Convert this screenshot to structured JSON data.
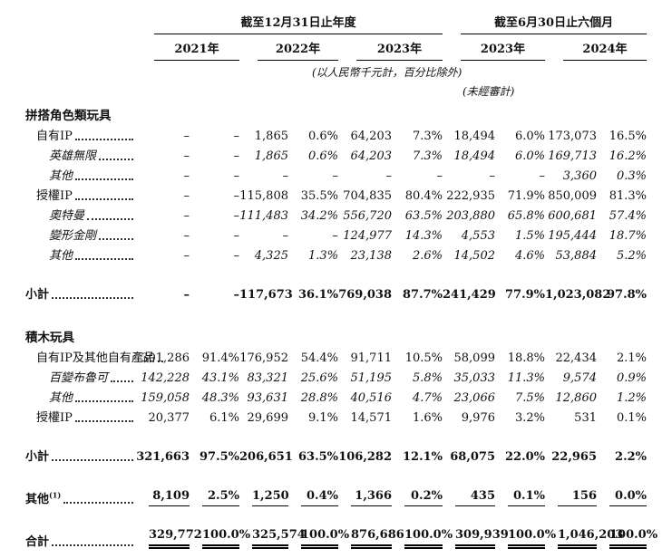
{
  "header": {
    "group1": "截至12月31日止年度",
    "group2": "截至6月30日止六個月",
    "years": [
      "2021年",
      "2022年",
      "2023年",
      "2023年",
      "2024年"
    ],
    "note_units": "(以人民幣千元計，百分比除外)",
    "note_unaudited": "(未經審計)"
  },
  "table": {
    "rows": [
      {
        "kind": "section",
        "label": "拼搭角色類玩具"
      },
      {
        "kind": "data",
        "label": "自有IP",
        "indent": 1,
        "emph": "normal",
        "values": [
          "–",
          "–",
          "1,865",
          "0.6%",
          "64,203",
          "7.3%",
          "18,494",
          "6.0%",
          "173,073",
          "16.5%"
        ]
      },
      {
        "kind": "data",
        "label": "英雄無限",
        "indent": 2,
        "emph": "italic",
        "values": [
          "–",
          "–",
          "1,865",
          "0.6%",
          "64,203",
          "7.3%",
          "18,494",
          "6.0%",
          "169,713",
          "16.2%"
        ]
      },
      {
        "kind": "data",
        "label": "其他",
        "indent": 2,
        "emph": "italic",
        "values": [
          "–",
          "–",
          "–",
          "–",
          "–",
          "–",
          "–",
          "–",
          "3,360",
          "0.3%"
        ]
      },
      {
        "kind": "data",
        "label": "授權IP",
        "indent": 1,
        "emph": "normal",
        "values": [
          "–",
          "–",
          "115,808",
          "35.5%",
          "704,835",
          "80.4%",
          "222,935",
          "71.9%",
          "850,009",
          "81.3%"
        ]
      },
      {
        "kind": "data",
        "label": "奧特曼",
        "indent": 2,
        "emph": "italic",
        "values": [
          "–",
          "–",
          "111,483",
          "34.2%",
          "556,720",
          "63.5%",
          "203,880",
          "65.8%",
          "600,681",
          "57.4%"
        ]
      },
      {
        "kind": "data",
        "label": "變形金剛",
        "indent": 2,
        "emph": "italic",
        "values": [
          "–",
          "–",
          "–",
          "–",
          "124,977",
          "14.3%",
          "4,553",
          "1.5%",
          "195,444",
          "18.7%"
        ]
      },
      {
        "kind": "data",
        "label": "其他",
        "indent": 2,
        "emph": "italic",
        "values": [
          "–",
          "–",
          "4,325",
          "1.3%",
          "23,138",
          "2.6%",
          "14,502",
          "4.6%",
          "53,884",
          "5.2%"
        ]
      },
      {
        "kind": "spacer"
      },
      {
        "kind": "data",
        "label": "小計",
        "indent": 0,
        "emph": "bold",
        "values": [
          "–",
          "–",
          "117,673",
          "36.1%",
          "769,038",
          "87.7%",
          "241,429",
          "77.9%",
          "1,023,082",
          "97.8%"
        ]
      },
      {
        "kind": "spacer"
      },
      {
        "kind": "section",
        "label": "積木玩具"
      },
      {
        "kind": "data",
        "label": "自有IP及其他自有產品",
        "indent": 1,
        "emph": "normal",
        "values": [
          "301,286",
          "91.4%",
          "176,952",
          "54.4%",
          "91,711",
          "10.5%",
          "58,099",
          "18.8%",
          "22,434",
          "2.1%"
        ]
      },
      {
        "kind": "data",
        "label": "百變布魯可",
        "indent": 2,
        "emph": "italic",
        "values": [
          "142,228",
          "43.1%",
          "83,321",
          "25.6%",
          "51,195",
          "5.8%",
          "35,033",
          "11.3%",
          "9,574",
          "0.9%"
        ]
      },
      {
        "kind": "data",
        "label": "其他",
        "indent": 2,
        "emph": "italic",
        "values": [
          "159,058",
          "48.3%",
          "93,631",
          "28.8%",
          "40,516",
          "4.7%",
          "23,066",
          "7.5%",
          "12,860",
          "1.2%"
        ]
      },
      {
        "kind": "data",
        "label": "授權IP",
        "indent": 1,
        "emph": "normal",
        "values": [
          "20,377",
          "6.1%",
          "29,699",
          "9.1%",
          "14,571",
          "1.6%",
          "9,976",
          "3.2%",
          "531",
          "0.1%"
        ]
      },
      {
        "kind": "spacer"
      },
      {
        "kind": "data",
        "label": "小計",
        "indent": 0,
        "emph": "bold",
        "values": [
          "321,663",
          "97.5%",
          "206,651",
          "63.5%",
          "106,282",
          "12.1%",
          "68,075",
          "22.0%",
          "22,965",
          "2.2%"
        ]
      },
      {
        "kind": "spacer"
      },
      {
        "kind": "data",
        "label": "其他",
        "sup": "(1)",
        "indent": 0,
        "emph": "bold",
        "rule": "single",
        "values": [
          "8,109",
          "2.5%",
          "1,250",
          "0.4%",
          "1,366",
          "0.2%",
          "435",
          "0.1%",
          "156",
          "0.0%"
        ]
      },
      {
        "kind": "spacer"
      },
      {
        "kind": "data",
        "label": "合計",
        "indent": 0,
        "emph": "bold",
        "rule": "double",
        "values": [
          "329,772",
          "100.0%",
          "325,574",
          "100.0%",
          "876,686",
          "100.0%",
          "309,939",
          "100.0%",
          "1,046,203",
          "100.0%"
        ]
      }
    ]
  }
}
